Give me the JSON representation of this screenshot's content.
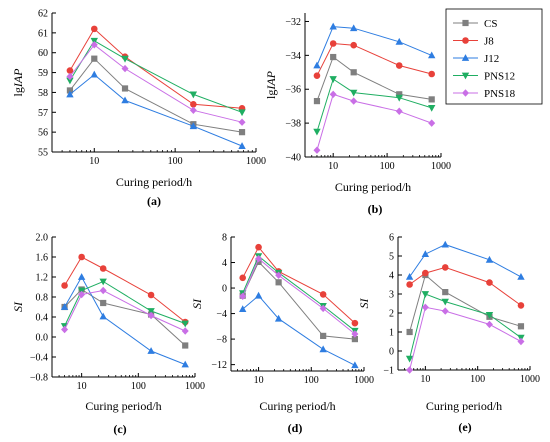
{
  "colors": {
    "CS": "#7f7f7f",
    "J8": "#e8413a",
    "J12": "#2e7de1",
    "PNS12": "#1fae62",
    "PNS18": "#c96fe6"
  },
  "legend": [
    "CS",
    "J8",
    "J12",
    "PNS12",
    "PNS18"
  ],
  "chart_data": [
    {
      "type": "line",
      "panel": "(a)",
      "xlabel": "Curing period/h",
      "ylabel": "lgIAP",
      "xscale": "log",
      "xlim": [
        3,
        1000
      ],
      "ylim": [
        55,
        62
      ],
      "xticks": [
        10,
        100,
        1000
      ],
      "xtick_labels": [
        "10",
        "100",
        "1000"
      ],
      "yticks": [
        55,
        56,
        57,
        58,
        59,
        60,
        61,
        62
      ],
      "ytick_labels": [
        "55",
        "56",
        "57",
        "58",
        "59",
        "60",
        "61",
        "62"
      ],
      "x": [
        5,
        10,
        24,
        168,
        672
      ],
      "series": [
        {
          "name": "CS",
          "values": [
            58.1,
            59.7,
            58.2,
            56.4,
            56.0
          ]
        },
        {
          "name": "J8",
          "values": [
            59.1,
            61.2,
            59.8,
            57.4,
            57.2
          ]
        },
        {
          "name": "J12",
          "values": [
            57.9,
            58.9,
            57.6,
            56.3,
            55.3
          ]
        },
        {
          "name": "PNS12",
          "values": [
            58.6,
            60.6,
            59.7,
            57.9,
            57.0
          ]
        },
        {
          "name": "PNS18",
          "values": [
            58.8,
            60.4,
            59.2,
            57.1,
            56.5
          ]
        }
      ]
    },
    {
      "type": "line",
      "panel": "(b)",
      "xlabel": "Curing period/h",
      "ylabel": "lgIAP",
      "xscale": "log",
      "xlim": [
        3,
        1000
      ],
      "ylim": [
        -40,
        -31.5
      ],
      "xticks": [
        10,
        100,
        1000
      ],
      "xtick_labels": [
        "10",
        "100",
        "1000"
      ],
      "yticks": [
        -40,
        -38,
        -36,
        -34,
        -32
      ],
      "ytick_labels": [
        "−40",
        "−38",
        "−36",
        "−34",
        "−32"
      ],
      "x": [
        5,
        10,
        24,
        168,
        672
      ],
      "series": [
        {
          "name": "CS",
          "values": [
            -36.7,
            -34.1,
            -35.0,
            -36.3,
            -36.6
          ]
        },
        {
          "name": "J8",
          "values": [
            -35.2,
            -33.3,
            -33.4,
            -34.6,
            -35.1
          ]
        },
        {
          "name": "J12",
          "values": [
            -34.6,
            -32.3,
            -32.4,
            -33.2,
            -34.0
          ]
        },
        {
          "name": "PNS12",
          "values": [
            -38.5,
            -35.4,
            -36.2,
            -36.5,
            -37.1
          ]
        },
        {
          "name": "PNS18",
          "values": [
            -39.6,
            -36.3,
            -36.7,
            -37.3,
            -38.0
          ]
        }
      ]
    },
    {
      "type": "line",
      "panel": "(c)",
      "xlabel": "Curing period/h",
      "ylabel": "SI",
      "xscale": "log",
      "xlim": [
        3,
        1000
      ],
      "ylim": [
        -0.8,
        2.0
      ],
      "xticks": [
        10,
        100,
        1000
      ],
      "xtick_labels": [
        "10",
        "100",
        "1000"
      ],
      "yticks": [
        -0.8,
        -0.4,
        0.0,
        0.4,
        0.8,
        1.2,
        1.6,
        2.0
      ],
      "ytick_labels": [
        "−0.8",
        "−0.4",
        "0.0",
        "0.4",
        "0.8",
        "1.2",
        "1.6",
        "2.0"
      ],
      "x": [
        5,
        10,
        24,
        168,
        672
      ],
      "series": [
        {
          "name": "CS",
          "values": [
            0.6,
            0.95,
            0.68,
            0.45,
            -0.17
          ]
        },
        {
          "name": "J8",
          "values": [
            1.03,
            1.6,
            1.37,
            0.84,
            0.3
          ]
        },
        {
          "name": "J12",
          "values": [
            0.6,
            1.2,
            0.41,
            -0.28,
            -0.55
          ]
        },
        {
          "name": "PNS12",
          "values": [
            0.22,
            0.93,
            1.11,
            0.52,
            0.27
          ]
        },
        {
          "name": "PNS18",
          "values": [
            0.15,
            0.85,
            0.93,
            0.43,
            0.12
          ]
        }
      ]
    },
    {
      "type": "line",
      "panel": "(d)",
      "xlabel": "Curing period/h",
      "ylabel": "SI",
      "xscale": "log",
      "xlim": [
        3,
        1000
      ],
      "ylim": [
        -13,
        8
      ],
      "xticks": [
        10,
        100,
        1000
      ],
      "xtick_labels": [
        "10",
        "100",
        "1000"
      ],
      "yticks": [
        -12,
        -8,
        -4,
        0,
        4,
        8
      ],
      "ytick_labels": [
        "−12",
        "−8",
        "−4",
        "0",
        "4",
        "8"
      ],
      "x": [
        5,
        10,
        24,
        168,
        672
      ],
      "series": [
        {
          "name": "CS",
          "values": [
            -1.2,
            4.1,
            0.9,
            -7.5,
            -8.0
          ]
        },
        {
          "name": "J8",
          "values": [
            1.6,
            6.4,
            2.6,
            -1.0,
            -5.5
          ]
        },
        {
          "name": "J12",
          "values": [
            -3.3,
            -1.2,
            -4.8,
            -9.6,
            -12.1
          ]
        },
        {
          "name": "PNS12",
          "values": [
            -0.8,
            5.0,
            2.4,
            -2.8,
            -6.7
          ]
        },
        {
          "name": "PNS18",
          "values": [
            -1.3,
            4.6,
            2.0,
            -3.2,
            -7.2
          ]
        }
      ]
    },
    {
      "type": "line",
      "panel": "(e)",
      "xlabel": "Curing period/h",
      "ylabel": "SI",
      "xscale": "log",
      "xlim": [
        3,
        1000
      ],
      "ylim": [
        -1,
        6
      ],
      "xticks": [
        10,
        100,
        1000
      ],
      "xtick_labels": [
        "10",
        "100",
        "1000"
      ],
      "yticks": [
        -1,
        0,
        1,
        2,
        3,
        4,
        5,
        6
      ],
      "ytick_labels": [
        "−1",
        "0",
        "1",
        "2",
        "3",
        "4",
        "5",
        "6"
      ],
      "x": [
        5,
        10,
        24,
        168,
        672
      ],
      "series": [
        {
          "name": "CS",
          "values": [
            1.0,
            4.0,
            3.1,
            1.8,
            1.3
          ]
        },
        {
          "name": "J8",
          "values": [
            3.5,
            4.1,
            4.4,
            3.6,
            2.4
          ]
        },
        {
          "name": "J12",
          "values": [
            3.9,
            5.1,
            5.6,
            4.8,
            3.9
          ]
        },
        {
          "name": "PNS12",
          "values": [
            -0.4,
            3.0,
            2.6,
            1.9,
            0.7
          ]
        },
        {
          "name": "PNS18",
          "values": [
            -1.0,
            2.3,
            2.1,
            1.4,
            0.5
          ]
        }
      ]
    }
  ]
}
